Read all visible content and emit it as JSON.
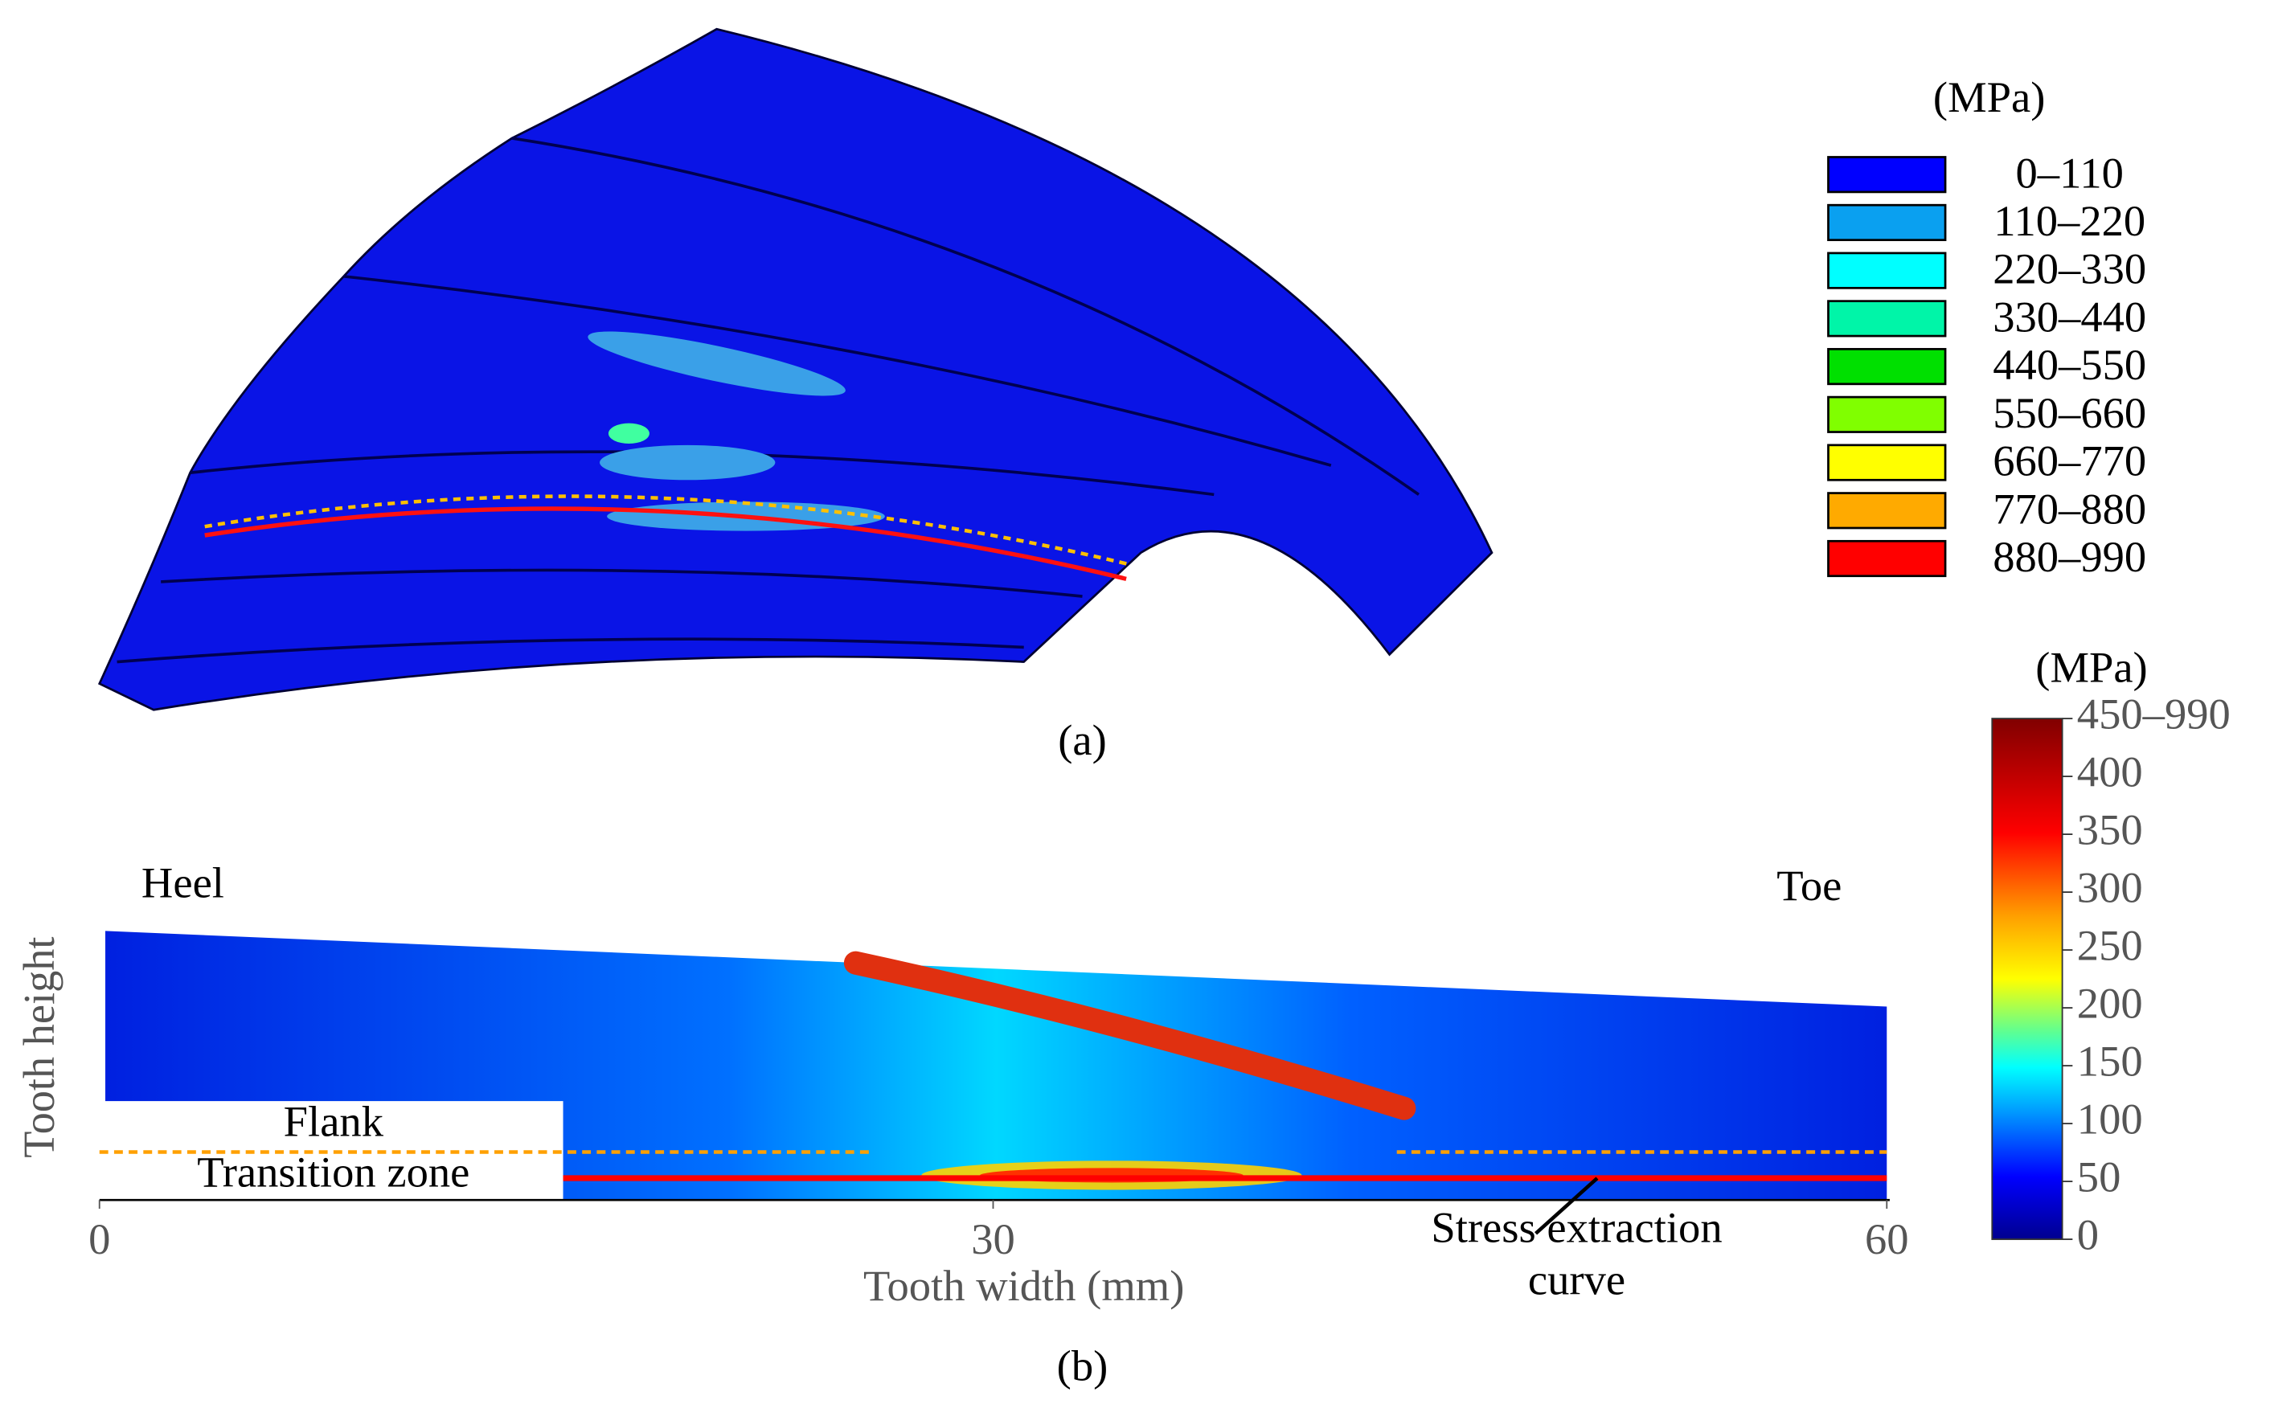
{
  "panel_a": {
    "caption": "(a)",
    "legend_unit": "(MPa)",
    "levels": [
      {
        "label": "0–110",
        "color": "#0000ff"
      },
      {
        "label": "110–220",
        "color": "#0aa0f0"
      },
      {
        "label": "220–330",
        "color": "#00ffff"
      },
      {
        "label": "330–440",
        "color": "#00f5a8"
      },
      {
        "label": "440–550",
        "color": "#00e000"
      },
      {
        "label": "550–660",
        "color": "#80ff00"
      },
      {
        "label": "660–770",
        "color": "#ffff00"
      },
      {
        "label": "770–880",
        "color": "#ffaa00"
      },
      {
        "label": "880–990",
        "color": "#ff0000"
      }
    ]
  },
  "panel_b": {
    "caption": "(b)",
    "x_label": "Tooth width (mm)",
    "y_label": "Tooth height",
    "xlim": [
      0,
      60
    ],
    "xticks": [
      0,
      30,
      60
    ],
    "colorbar_unit": "(MPa)",
    "colorbar_lim": [
      0,
      450
    ],
    "colorbar_ticks": [
      0,
      50,
      100,
      150,
      200,
      250,
      300,
      350,
      400,
      {
        "value": 450,
        "label": "450–990"
      }
    ],
    "annotations": {
      "heel": "Heel",
      "toe": "Toe",
      "flank": "Flank",
      "transition": "Transition zone",
      "curve_line1": "Stress extraction",
      "curve_line2": "curve"
    }
  }
}
